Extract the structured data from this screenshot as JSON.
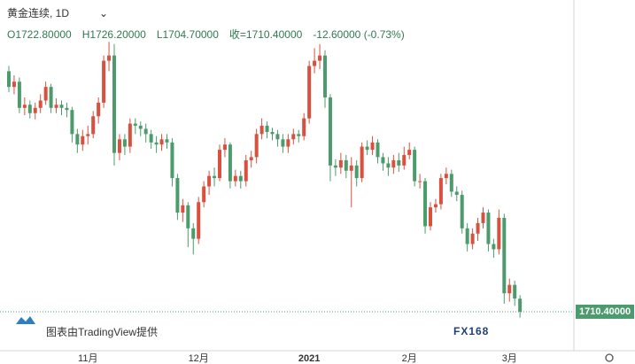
{
  "chart_data": {
    "type": "candlestick",
    "title": "黄金连续, 1D",
    "header": [
      "O1722.80000",
      "H1726.20000",
      "L1704.70000",
      "收=1710.40000",
      "-12.60000 (-0.73%)"
    ],
    "categories": [
      null,
      null,
      null,
      null,
      null,
      null,
      null,
      null,
      null,
      null,
      null,
      null,
      null,
      null,
      null,
      "11月",
      null,
      null,
      null,
      null,
      null,
      null,
      null,
      null,
      null,
      null,
      null,
      null,
      null,
      null,
      null,
      null,
      null,
      null,
      null,
      null,
      "12月",
      null,
      null,
      null,
      null,
      null,
      null,
      null,
      null,
      null,
      null,
      null,
      null,
      null,
      null,
      null,
      null,
      null,
      null,
      null,
      null,
      "2021",
      null,
      null,
      null,
      null,
      null,
      null,
      null,
      null,
      null,
      null,
      null,
      null,
      null,
      null,
      null,
      null,
      null,
      null,
      "2月",
      null,
      null,
      null,
      null,
      null,
      null,
      null,
      null,
      null,
      null,
      null,
      null,
      null,
      null,
      null,
      null,
      null,
      null,
      "3月",
      null,
      null
    ],
    "open": [
      1940,
      1925,
      1930,
      1905,
      1908,
      1900,
      1905,
      1912,
      1925,
      1905,
      1908,
      1905,
      1903,
      1880,
      1870,
      1878,
      1880,
      1897,
      1910,
      1950,
      1955,
      1862,
      1875,
      1868,
      1890,
      1888,
      1885,
      1880,
      1872,
      1870,
      1875,
      1872,
      1838,
      1805,
      1812,
      1790,
      1780,
      1815,
      1830,
      1840,
      1838,
      1865,
      1870,
      1835,
      1840,
      1835,
      1855,
      1858,
      1880,
      1888,
      1882,
      1880,
      1875,
      1868,
      1875,
      1880,
      1878,
      1895,
      1945,
      1950,
      1955,
      1915,
      1850,
      1848,
      1855,
      1845,
      1850,
      1838,
      1868,
      1865,
      1872,
      1858,
      1852,
      1848,
      1855,
      1850,
      1860,
      1865,
      1835,
      1835,
      1792,
      1810,
      1813,
      1838,
      1842,
      1825,
      1822,
      1790,
      1775,
      1785,
      1795,
      1805,
      1775,
      1770,
      1800,
      1728,
      1736,
      1722.8
    ],
    "high": [
      1945,
      1936,
      1934,
      1915,
      1912,
      1910,
      1918,
      1930,
      1928,
      1914,
      1912,
      1910,
      1906,
      1885,
      1884,
      1888,
      1902,
      1915,
      1955,
      1968,
      1966,
      1880,
      1880,
      1895,
      1895,
      1892,
      1890,
      1884,
      1878,
      1880,
      1880,
      1876,
      1842,
      1818,
      1815,
      1795,
      1820,
      1835,
      1845,
      1848,
      1870,
      1876,
      1872,
      1846,
      1845,
      1860,
      1864,
      1885,
      1895,
      1892,
      1886,
      1884,
      1880,
      1880,
      1885,
      1884,
      1900,
      1950,
      1962,
      1966,
      1960,
      1918,
      1856,
      1862,
      1860,
      1858,
      1855,
      1872,
      1874,
      1878,
      1875,
      1862,
      1858,
      1860,
      1862,
      1868,
      1872,
      1868,
      1842,
      1838,
      1815,
      1818,
      1842,
      1848,
      1846,
      1830,
      1826,
      1795,
      1790,
      1800,
      1810,
      1808,
      1780,
      1808,
      1804,
      1742,
      1740,
      1726.2
    ],
    "low": [
      1920,
      1918,
      1900,
      1898,
      1895,
      1894,
      1900,
      1908,
      1900,
      1900,
      1898,
      1896,
      1872,
      1862,
      1864,
      1870,
      1876,
      1890,
      1905,
      1940,
      1850,
      1855,
      1860,
      1862,
      1880,
      1878,
      1872,
      1866,
      1862,
      1864,
      1866,
      1830,
      1798,
      1796,
      1772,
      1765,
      1775,
      1810,
      1822,
      1830,
      1835,
      1858,
      1828,
      1830,
      1828,
      1830,
      1848,
      1852,
      1875,
      1876,
      1874,
      1868,
      1862,
      1862,
      1870,
      1872,
      1874,
      1890,
      1938,
      1942,
      1905,
      1835,
      1840,
      1842,
      1838,
      1810,
      1830,
      1834,
      1860,
      1860,
      1852,
      1845,
      1840,
      1842,
      1844,
      1846,
      1856,
      1830,
      1828,
      1785,
      1788,
      1805,
      1808,
      1832,
      1820,
      1816,
      1785,
      1768,
      1770,
      1778,
      1790,
      1768,
      1762,
      1765,
      1718,
      1720,
      1716,
      1704.7
    ],
    "close": [
      1925,
      1930,
      1905,
      1908,
      1900,
      1905,
      1912,
      1925,
      1905,
      1908,
      1905,
      1903,
      1880,
      1870,
      1878,
      1880,
      1897,
      1910,
      1950,
      1955,
      1862,
      1875,
      1868,
      1890,
      1888,
      1885,
      1880,
      1872,
      1870,
      1875,
      1872,
      1838,
      1805,
      1812,
      1790,
      1780,
      1815,
      1830,
      1840,
      1838,
      1865,
      1870,
      1835,
      1840,
      1835,
      1855,
      1858,
      1880,
      1888,
      1882,
      1880,
      1875,
      1868,
      1875,
      1880,
      1878,
      1895,
      1945,
      1950,
      1955,
      1915,
      1850,
      1848,
      1855,
      1845,
      1850,
      1838,
      1868,
      1865,
      1872,
      1858,
      1852,
      1848,
      1855,
      1850,
      1860,
      1865,
      1835,
      1835,
      1792,
      1810,
      1813,
      1838,
      1842,
      1825,
      1822,
      1790,
      1775,
      1785,
      1795,
      1805,
      1775,
      1770,
      1800,
      1728,
      1736,
      1723,
      1710.4
    ],
    "up_color": "#d9503f",
    "down_color": "#4c9b6c",
    "ylim": [
      1674,
      2008
    ],
    "last_price_label": "1710.40000",
    "attribution": "图表由TradingView提供",
    "watermark": "FX168"
  }
}
